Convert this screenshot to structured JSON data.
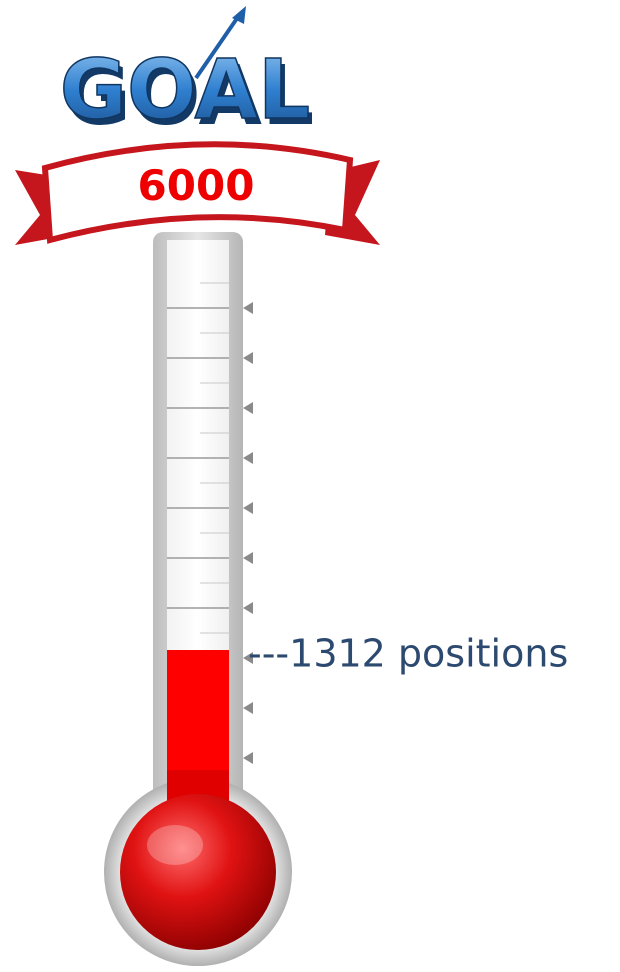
{
  "goal": {
    "logo": "GOAL",
    "value": 6000
  },
  "marker": {
    "label": "---1312 positions"
  }
}
